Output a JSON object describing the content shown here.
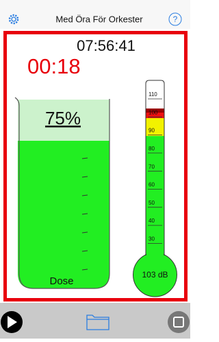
{
  "header": {
    "title": "Med Öra För Orkester",
    "help": "?"
  },
  "clock": "07:56:41",
  "elapsed": "00:18",
  "dose": {
    "percent": "75%",
    "label": "Dose"
  },
  "meter": {
    "scale": [
      "110",
      "100",
      "90",
      "80",
      "70",
      "60",
      "50",
      "40",
      "30"
    ],
    "reading": "103 dB"
  }
}
